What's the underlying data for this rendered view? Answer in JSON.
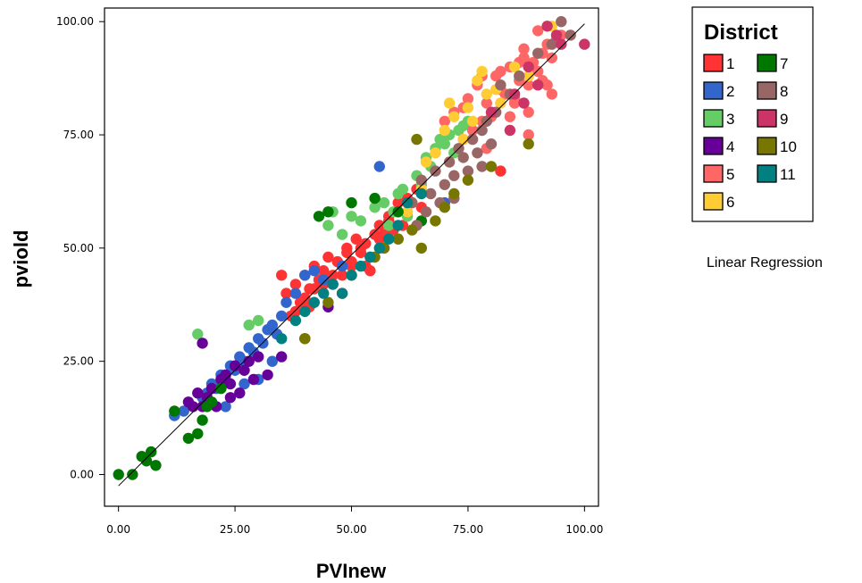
{
  "chart_data": {
    "type": "scatter",
    "title": "",
    "xlabel": "PVInew",
    "ylabel": "pviold",
    "xlim": [
      -3,
      103
    ],
    "ylim": [
      -7,
      103
    ],
    "xticks": [
      0,
      25,
      50,
      75,
      100
    ],
    "yticks": [
      0,
      25,
      50,
      75,
      100
    ],
    "xtick_labels": [
      "0.00",
      "25.00",
      "50.00",
      "75.00",
      "100.00"
    ],
    "ytick_labels": [
      "0.00",
      "25.00",
      "50.00",
      "75.00",
      "100.00"
    ],
    "grid": false,
    "legend": {
      "title": "District",
      "placement": "right",
      "note": "Linear Regression",
      "entries": [
        {
          "label": "1",
          "color": "#ff3333"
        },
        {
          "label": "2",
          "color": "#3366cc"
        },
        {
          "label": "3",
          "color": "#66cc66"
        },
        {
          "label": "4",
          "color": "#660099"
        },
        {
          "label": "5",
          "color": "#ff6666"
        },
        {
          "label": "6",
          "color": "#ffcc33"
        },
        {
          "label": "7",
          "color": "#007700"
        },
        {
          "label": "8",
          "color": "#996666"
        },
        {
          "label": "9",
          "color": "#cc3366"
        },
        {
          "label": "10",
          "color": "#777700"
        },
        {
          "label": "11",
          "color": "#008080"
        }
      ]
    },
    "fit_line": {
      "x": [
        0,
        100
      ],
      "y": [
        -2.5,
        99.5
      ]
    },
    "series": [
      {
        "name": "1",
        "color": "#ff3333",
        "x": [
          36,
          38,
          39,
          40,
          41,
          42,
          43,
          44,
          45,
          46,
          47,
          48,
          49,
          50,
          51,
          52,
          53,
          54,
          55,
          56,
          57,
          58,
          59,
          60,
          38,
          40,
          42,
          44,
          46,
          48,
          50,
          52,
          54,
          56,
          58,
          60,
          62,
          64,
          37,
          41,
          45,
          49,
          53,
          57,
          61,
          65,
          82,
          35
        ],
        "y": [
          40,
          42,
          38,
          44,
          41,
          46,
          43,
          45,
          48,
          42,
          47,
          44,
          50,
          46,
          52,
          49,
          51,
          48,
          53,
          55,
          50,
          57,
          54,
          60,
          36,
          39,
          41,
          42,
          44,
          40,
          47,
          50,
          45,
          52,
          56,
          58,
          61,
          63,
          35,
          37,
          43,
          49,
          46,
          53,
          55,
          59,
          67,
          44
        ]
      },
      {
        "name": "2",
        "color": "#3366cc",
        "x": [
          12,
          14,
          18,
          19,
          20,
          21,
          22,
          23,
          24,
          25,
          26,
          27,
          28,
          29,
          30,
          31,
          32,
          33,
          34,
          35,
          36,
          38,
          40,
          42,
          44,
          46,
          48,
          56,
          70,
          23,
          27,
          30,
          33
        ],
        "y": [
          13,
          14,
          17,
          18,
          20,
          19,
          22,
          21,
          24,
          23,
          26,
          25,
          28,
          27,
          30,
          29,
          32,
          33,
          31,
          35,
          38,
          40,
          44,
          45,
          43,
          42,
          46,
          68,
          60,
          15,
          20,
          21,
          25
        ]
      },
      {
        "name": "3",
        "color": "#66cc66",
        "x": [
          17,
          30,
          45,
          46,
          48,
          50,
          52,
          55,
          57,
          58,
          59,
          60,
          61,
          62,
          63,
          64,
          65,
          66,
          67,
          68,
          69,
          70,
          71,
          72,
          73,
          74,
          75,
          28
        ],
        "y": [
          31,
          34,
          55,
          58,
          53,
          57,
          56,
          59,
          60,
          55,
          58,
          62,
          63,
          57,
          60,
          66,
          64,
          70,
          68,
          72,
          74,
          73,
          75,
          71,
          76,
          77,
          78,
          33
        ]
      },
      {
        "name": "4",
        "color": "#660099",
        "x": [
          15,
          16,
          17,
          18,
          19,
          20,
          21,
          22,
          23,
          24,
          25,
          26,
          27,
          28,
          29,
          30,
          32,
          35,
          40,
          45,
          18,
          24
        ],
        "y": [
          16,
          15,
          18,
          29,
          17,
          19,
          15,
          21,
          22,
          20,
          24,
          18,
          23,
          25,
          21,
          26,
          22,
          26,
          30,
          37,
          15,
          17
        ]
      },
      {
        "name": "5",
        "color": "#ff6666",
        "x": [
          70,
          72,
          74,
          75,
          76,
          77,
          78,
          79,
          80,
          81,
          82,
          83,
          84,
          85,
          86,
          87,
          88,
          89,
          90,
          91,
          92,
          93,
          94,
          95,
          79,
          82,
          85,
          88,
          91,
          84,
          87,
          90,
          93,
          88,
          86,
          92,
          78,
          74
        ],
        "y": [
          78,
          80,
          74,
          83,
          76,
          86,
          78,
          82,
          79,
          88,
          85,
          84,
          90,
          82,
          87,
          92,
          86,
          91,
          89,
          93,
          95,
          84,
          96,
          97,
          72,
          89,
          83,
          80,
          87,
          79,
          94,
          98,
          92,
          75,
          91,
          86,
          88,
          81
        ]
      },
      {
        "name": "6",
        "color": "#ffcc33",
        "x": [
          62,
          65,
          68,
          70,
          71,
          72,
          74,
          75,
          76,
          77,
          78,
          79,
          80,
          81,
          82,
          85,
          88,
          93,
          66
        ],
        "y": [
          58,
          63,
          71,
          76,
          82,
          79,
          74,
          81,
          78,
          87,
          89,
          84,
          80,
          85,
          82,
          90,
          88,
          99,
          69
        ]
      },
      {
        "name": "7",
        "color": "#007700",
        "x": [
          0,
          3,
          5,
          6,
          7,
          8,
          15,
          17,
          18,
          19,
          20,
          43,
          45,
          50,
          55,
          60,
          65,
          12,
          22
        ],
        "y": [
          0,
          0,
          4,
          3,
          5,
          2,
          8,
          9,
          12,
          15,
          16,
          57,
          58,
          60,
          61,
          58,
          56,
          14,
          19
        ]
      },
      {
        "name": "8",
        "color": "#996666",
        "x": [
          60,
          63,
          64,
          65,
          66,
          67,
          68,
          69,
          70,
          71,
          72,
          73,
          74,
          75,
          76,
          77,
          78,
          79,
          80,
          81,
          82,
          84,
          86,
          90,
          93,
          95,
          97,
          72,
          78
        ],
        "y": [
          52,
          60,
          55,
          65,
          58,
          62,
          67,
          60,
          64,
          69,
          66,
          72,
          70,
          67,
          74,
          71,
          76,
          78,
          73,
          80,
          86,
          84,
          88,
          93,
          95,
          100,
          97,
          61,
          68
        ]
      },
      {
        "name": "9",
        "color": "#cc3366",
        "x": [
          80,
          85,
          87,
          90,
          92,
          95,
          100,
          94,
          88,
          84
        ],
        "y": [
          80,
          84,
          82,
          86,
          99,
          95,
          95,
          97,
          90,
          76
        ]
      },
      {
        "name": "10",
        "color": "#777700",
        "x": [
          40,
          45,
          50,
          55,
          60,
          63,
          65,
          68,
          70,
          72,
          75,
          80,
          88,
          64,
          57
        ],
        "y": [
          30,
          38,
          44,
          48,
          52,
          54,
          50,
          56,
          59,
          62,
          65,
          68,
          73,
          74,
          50
        ]
      },
      {
        "name": "11",
        "color": "#008080",
        "x": [
          35,
          38,
          40,
          42,
          44,
          46,
          48,
          50,
          52,
          54,
          56,
          58,
          60,
          62,
          65
        ],
        "y": [
          30,
          34,
          36,
          38,
          40,
          42,
          40,
          44,
          46,
          48,
          50,
          52,
          55,
          60,
          62
        ]
      }
    ]
  }
}
